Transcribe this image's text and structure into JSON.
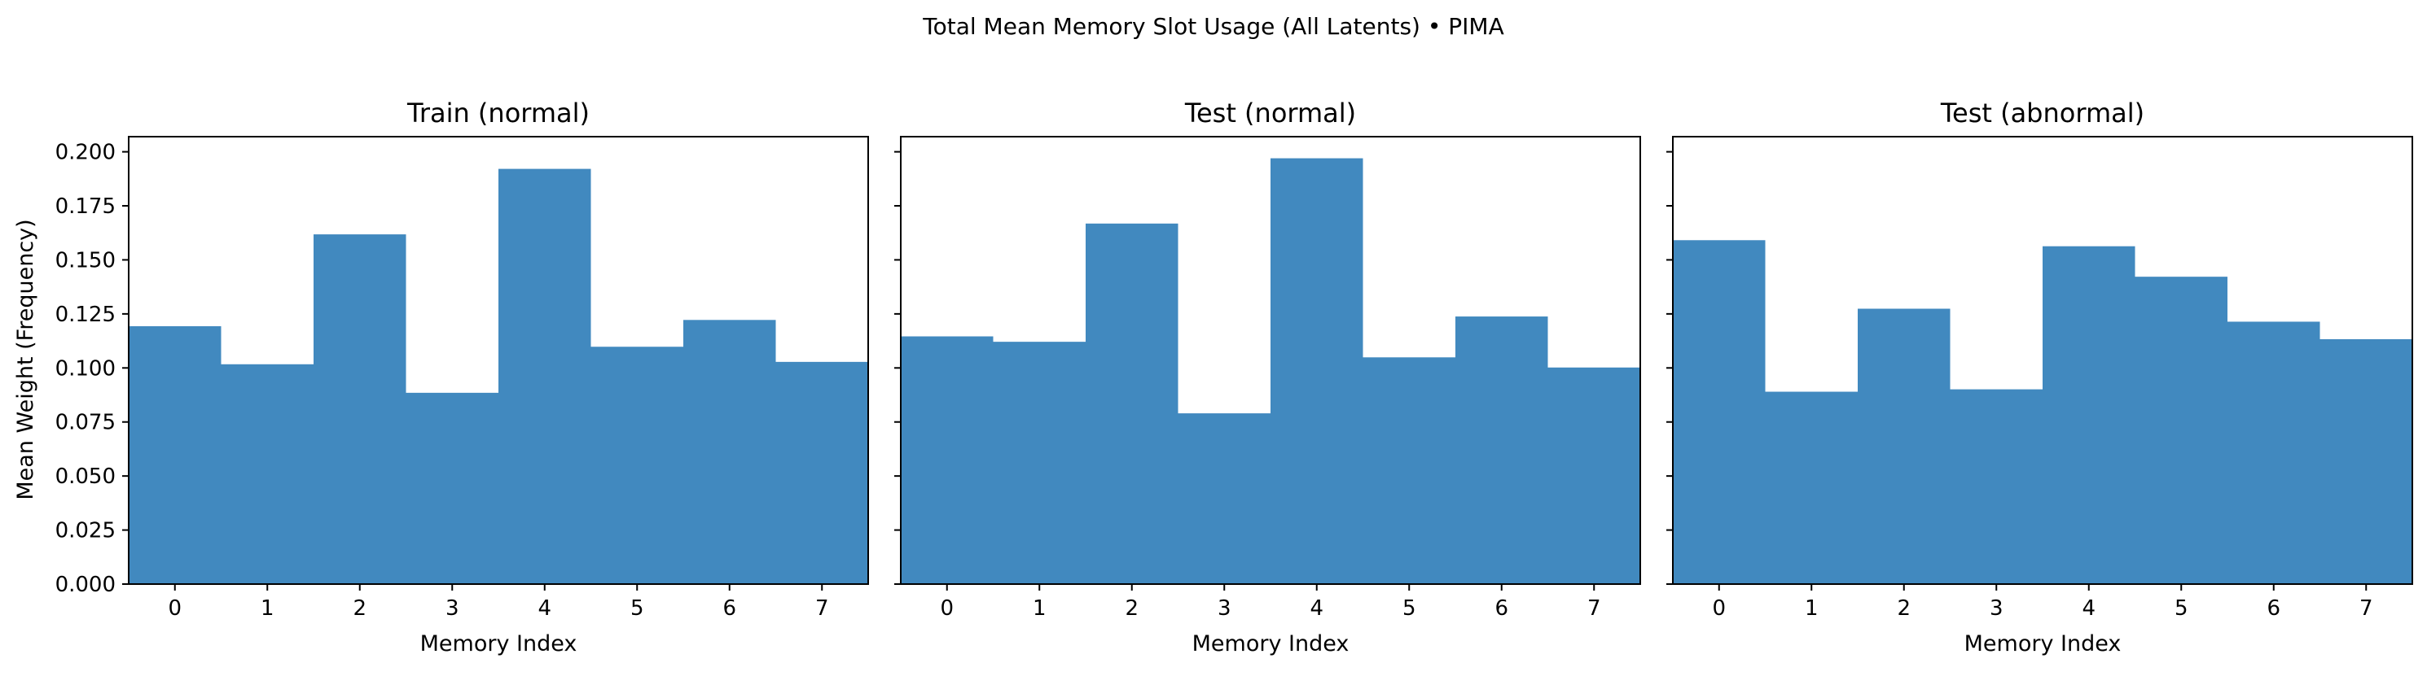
{
  "chart_data": {
    "type": "bar",
    "title": "Total Mean Memory Slot Usage (All Latents) • PIMA",
    "ylabel": "Mean Weight (Frequency)",
    "xlabel": "Memory Index",
    "ylim": [
      0,
      0.207
    ],
    "y_ticks": [
      "0.000",
      "0.025",
      "0.050",
      "0.075",
      "0.100",
      "0.125",
      "0.150",
      "0.175",
      "0.200"
    ],
    "y_tick_values": [
      0,
      0.025,
      0.05,
      0.075,
      0.1,
      0.125,
      0.15,
      0.175,
      0.2
    ],
    "categories": [
      "0",
      "1",
      "2",
      "3",
      "4",
      "5",
      "6",
      "7"
    ],
    "bar_color": "#4189bf",
    "sharey": true,
    "grid": false,
    "panels": [
      {
        "title": "Train (normal)",
        "values": [
          0.1193,
          0.1017,
          0.1618,
          0.0885,
          0.1921,
          0.1098,
          0.1222,
          0.1028
        ]
      },
      {
        "title": "Test (normal)",
        "values": [
          0.1146,
          0.1121,
          0.1668,
          0.079,
          0.197,
          0.1049,
          0.1238,
          0.1002
        ]
      },
      {
        "title": "Test (abnormal)",
        "values": [
          0.1591,
          0.089,
          0.1274,
          0.0901,
          0.1563,
          0.1422,
          0.1214,
          0.1133
        ]
      }
    ]
  }
}
